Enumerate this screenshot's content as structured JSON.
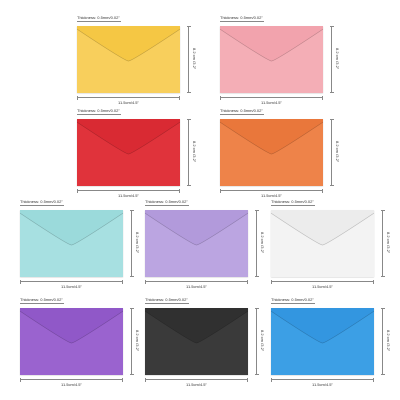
{
  "envelopes": [
    {
      "color_name": "yellow",
      "color": "#f8cf5c",
      "flap": "#f5c744",
      "thickness": "Thickness: 0.5mm/0.02\"",
      "height_label": "8.2 cm /3.2\"",
      "width_label": "11.5cm/4.5\""
    },
    {
      "color_name": "pink",
      "color": "#f4aeb6",
      "flap": "#f2a3ad",
      "thickness": "Thickness: 0.5mm/0.02\"",
      "height_label": "8.2 cm /3.2\"",
      "width_label": "11.5cm/4.5\""
    },
    {
      "color_name": "red",
      "color": "#e0333b",
      "flap": "#d92a33",
      "thickness": "Thickness: 0.5mm/0.02\"",
      "height_label": "8.2 cm /3.2\"",
      "width_label": "11.5cm/4.5\""
    },
    {
      "color_name": "orange",
      "color": "#ee8349",
      "flap": "#e9773b",
      "thickness": "Thickness: 0.5mm/0.02\"",
      "height_label": "8.2 cm /3.2\"",
      "width_label": "11.5cm/4.5\""
    },
    {
      "color_name": "light-blue",
      "color": "#a7e0e1",
      "flap": "#9bdadb",
      "thickness": "Thickness: 0.5mm/0.02\"",
      "height_label": "8.2 cm /3.2\"",
      "width_label": "11.5cm/4.5\""
    },
    {
      "color_name": "lavender",
      "color": "#bba5e1",
      "flap": "#b29adb",
      "thickness": "Thickness: 0.5mm/0.02\"",
      "height_label": "8.2 cm /3.2\"",
      "width_label": "11.5cm/4.5\""
    },
    {
      "color_name": "white",
      "color": "#f3f3f3",
      "flap": "#ececec",
      "thickness": "Thickness: 0.5mm/0.02\"",
      "height_label": "8.2 cm /3.2\"",
      "width_label": "11.5cm/4.5\""
    },
    {
      "color_name": "purple",
      "color": "#9a63cf",
      "flap": "#9058c8",
      "thickness": "Thickness: 0.5mm/0.02\"",
      "height_label": "8.2 cm /3.2\"",
      "width_label": "11.5cm/4.5\""
    },
    {
      "color_name": "black",
      "color": "#3a3a3a",
      "flap": "#303030",
      "thickness": "Thickness: 0.5mm/0.02\"",
      "height_label": "8.2 cm /3.2\"",
      "width_label": "11.5cm/4.5\""
    },
    {
      "color_name": "blue",
      "color": "#3c9fe5",
      "flap": "#3396e0",
      "thickness": "Thickness: 0.5mm/0.02\"",
      "height_label": "8.2 cm /3.2\"",
      "width_label": "11.5cm/4.5\""
    }
  ]
}
